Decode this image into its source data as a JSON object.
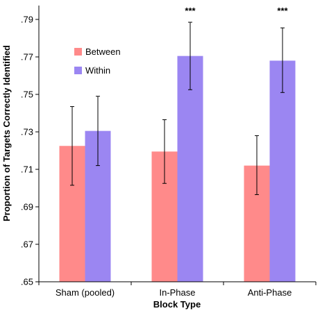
{
  "chart_data": {
    "type": "bar",
    "xlabel": "Block Type",
    "ylabel": "Proportion of Targets Correctly Identified",
    "ylim": [
      0.65,
      0.79
    ],
    "yticks": [
      0.65,
      0.67,
      0.69,
      0.71,
      0.73,
      0.75,
      0.77,
      0.79
    ],
    "ytick_labels": [
      ".65",
      ".67",
      ".69",
      ".71",
      ".73",
      ".75",
      ".77",
      ".79"
    ],
    "grid": false,
    "legend_position": "upper-left",
    "categories": [
      "Sham (pooled)",
      "In-Phase",
      "Anti-Phase"
    ],
    "series": [
      {
        "name": "Between",
        "color": "#ff8a8a",
        "values": [
          0.7225,
          0.7195,
          0.712
        ],
        "error_low": [
          0.7015,
          0.7025,
          0.6965
        ],
        "error_high": [
          0.7435,
          0.7365,
          0.728
        ]
      },
      {
        "name": "Within",
        "color": "#9b86f2",
        "values": [
          0.7305,
          0.7705,
          0.768
        ],
        "error_low": [
          0.712,
          0.7525,
          0.751
        ],
        "error_high": [
          0.749,
          0.7885,
          0.7855
        ]
      }
    ],
    "annotations": [
      "",
      "***",
      "***"
    ]
  }
}
